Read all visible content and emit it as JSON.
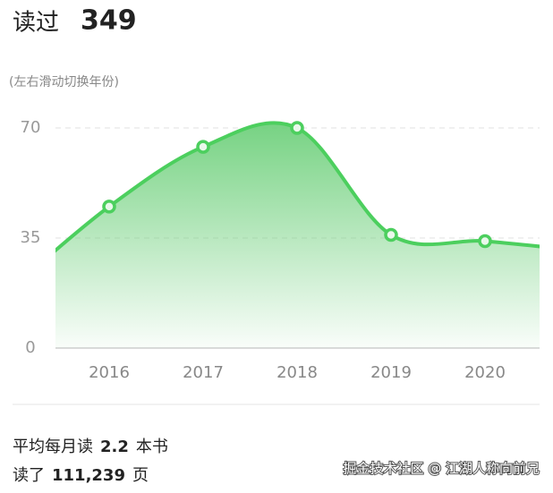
{
  "header": {
    "label": "读过",
    "count": "349",
    "hint": "(左右滑动切换年份)"
  },
  "chart_data": {
    "type": "line",
    "categories": [
      null,
      "2016",
      "2017",
      "2018",
      "2019",
      "2020",
      null
    ],
    "series": [
      {
        "color": "#4ccf5e",
        "values": [
          20,
          45,
          64,
          70,
          36,
          34,
          31
        ]
      }
    ],
    "ylim": [
      0,
      70
    ],
    "yticks": [
      0,
      35,
      70
    ],
    "grid": true
  },
  "footer": [
    {
      "prefix": "平均每月读",
      "value": "2.2",
      "suffix": "本书"
    },
    {
      "prefix": "读了",
      "value": "111,239",
      "suffix": "页"
    }
  ],
  "watermark": "掘金技术社区 @ 江湖人称向前兄"
}
